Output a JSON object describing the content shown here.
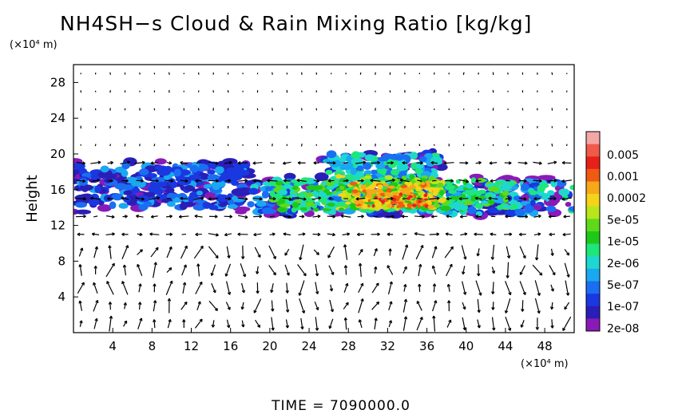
{
  "chart_data": {
    "type": "heatmap",
    "title": "NH4SH−s Cloud & Rain Mixing Ratio [kg/kg]",
    "ylabel": "Height",
    "xlabel": "",
    "x_unit": "(×10⁴ m)",
    "y_unit": "(×10⁴ m)",
    "xlim": [
      0,
      51
    ],
    "ylim": [
      0,
      30
    ],
    "x_ticks": [
      4,
      8,
      12,
      16,
      20,
      24,
      28,
      32,
      36,
      40,
      44,
      48
    ],
    "y_ticks": [
      4,
      8,
      12,
      16,
      20,
      24,
      28
    ],
    "grid": false,
    "legend_position": "right",
    "colorbar": {
      "labels": [
        "0.005",
        "0.001",
        "0.0002",
        "5e-05",
        "1e-05",
        "2e-06",
        "5e-07",
        "1e-07",
        "2e-08"
      ],
      "colors": [
        "#f4a8a6",
        "#f05a4a",
        "#e8201a",
        "#f05a12",
        "#f7a81a",
        "#f4d41a",
        "#b8e61a",
        "#5fda1a",
        "#1ec81a",
        "#1ee67a",
        "#1ed8d0",
        "#1aa8f0",
        "#1a6ef2",
        "#1a38e0",
        "#2a1eb8",
        "#8a1ab8"
      ]
    },
    "cloud_regions": [
      {
        "name": "left deck",
        "x_range": [
          0,
          18.5
        ],
        "y_range": [
          13.5,
          19.5
        ],
        "peak_level": "1e-07"
      },
      {
        "name": "central deck",
        "x_range": [
          16,
          50
        ],
        "y_range": [
          12.8,
          20.5
        ],
        "peak_level": "0.0002"
      },
      {
        "name": "core",
        "x_range": [
          28,
          40
        ],
        "y_range": [
          13.5,
          17
        ],
        "peak_level": "0.0002"
      },
      {
        "name": "right deck",
        "x_range": [
          46,
          51
        ],
        "y_range": [
          13.5,
          17
        ],
        "peak_level": "5e-07"
      }
    ],
    "wind_vectors": "shown"
  },
  "footer": {
    "time_label": "TIME  =  7090000.0"
  }
}
